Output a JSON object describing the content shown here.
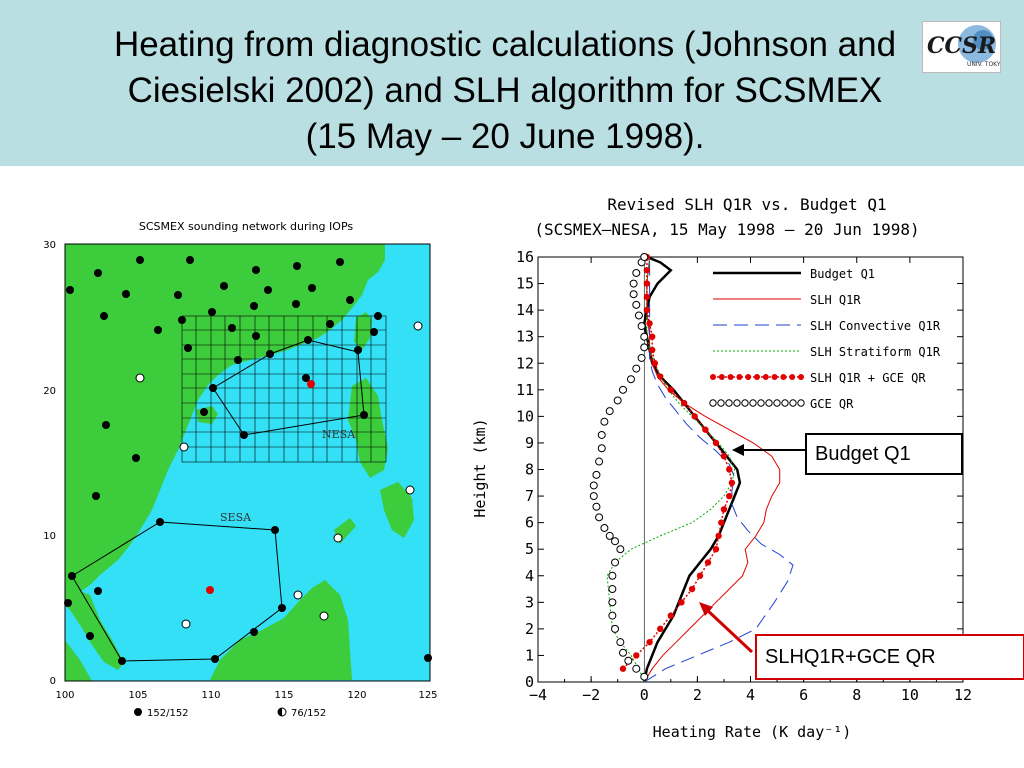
{
  "slide": {
    "title_lines": [
      "Heating from diagnostic calculations (Johnson and",
      "Ciesielski 2002) and SLH algorithm for SCSMEX",
      "(15 May – 20 June 1998)."
    ],
    "logo_text": "CCSR",
    "logo_subtext": "UNIV. TOKYO"
  },
  "map": {
    "title": "SCSMEX sounding network during IOPs",
    "x_ticks": [
      "100",
      "105",
      "110",
      "115",
      "120",
      "125"
    ],
    "y_ticks": [
      "0",
      "10",
      "20",
      "30"
    ],
    "region_labels": [
      "NESA",
      "SESA"
    ],
    "legend": [
      {
        "symbol": "filled-circle",
        "label": "152/152"
      },
      {
        "symbol": "half-circle",
        "label": "76/152"
      }
    ],
    "colors": {
      "ocean": "#33e0f5",
      "land": "#3ccc3c",
      "station": "#000000",
      "highlight": "#e00000"
    }
  },
  "chart_data": {
    "type": "line",
    "title": "Revised SLH Q1R vs. Budget Q1",
    "subtitle": "(SCSMEX–NESA, 15 May 1998 – 20 Jun 1998)",
    "xlabel": "Heating Rate (K day⁻¹)",
    "ylabel": "Height (km)",
    "xlim": [
      -4,
      12
    ],
    "ylim": [
      0,
      16
    ],
    "x_ticks": [
      "−4",
      "−2",
      "0",
      "2",
      "4",
      "6",
      "8",
      "10",
      "12"
    ],
    "y_ticks": [
      "0",
      "1",
      "2",
      "3",
      "4",
      "5",
      "6",
      "7",
      "8",
      "9",
      "10",
      "11",
      "12",
      "13",
      "14",
      "15",
      "16"
    ],
    "legend_position": "top-right",
    "series": [
      {
        "name": "Budget Q1",
        "color": "#000000",
        "style": "solid-thick",
        "points": [
          [
            0,
            0
          ],
          [
            0.1,
            0.5
          ],
          [
            0.3,
            1
          ],
          [
            0.5,
            1.5
          ],
          [
            0.8,
            2
          ],
          [
            1.1,
            2.5
          ],
          [
            1.3,
            3
          ],
          [
            1.5,
            3.5
          ],
          [
            1.7,
            4
          ],
          [
            2.1,
            4.5
          ],
          [
            2.5,
            5
          ],
          [
            2.8,
            5.5
          ],
          [
            3.0,
            6
          ],
          [
            3.2,
            6.5
          ],
          [
            3.4,
            7
          ],
          [
            3.6,
            7.5
          ],
          [
            3.5,
            8
          ],
          [
            3.1,
            8.5
          ],
          [
            2.7,
            9
          ],
          [
            2.3,
            9.5
          ],
          [
            1.9,
            10
          ],
          [
            1.5,
            10.5
          ],
          [
            1.1,
            11
          ],
          [
            0.6,
            11.5
          ],
          [
            0.3,
            12
          ],
          [
            0.2,
            12.5
          ],
          [
            0.1,
            13
          ],
          [
            0.0,
            13.5
          ],
          [
            0.1,
            14
          ],
          [
            0.2,
            14.5
          ],
          [
            0.5,
            15
          ],
          [
            1.0,
            15.5
          ],
          [
            0.6,
            15.8
          ],
          [
            0.1,
            16
          ]
        ]
      },
      {
        "name": "SLH Q1R",
        "color": "#e00000",
        "style": "solid-thin",
        "points": [
          [
            0,
            0
          ],
          [
            0.3,
            0.5
          ],
          [
            0.7,
            1
          ],
          [
            1.2,
            1.5
          ],
          [
            1.7,
            2
          ],
          [
            2.2,
            2.5
          ],
          [
            2.7,
            3
          ],
          [
            3.2,
            3.5
          ],
          [
            3.7,
            4
          ],
          [
            3.9,
            4.5
          ],
          [
            3.8,
            5
          ],
          [
            4.2,
            5.5
          ],
          [
            4.5,
            6
          ],
          [
            4.6,
            6.5
          ],
          [
            4.8,
            7
          ],
          [
            5.1,
            7.5
          ],
          [
            5.1,
            8
          ],
          [
            4.8,
            8.5
          ],
          [
            4.1,
            9
          ],
          [
            3.2,
            9.5
          ],
          [
            2.3,
            10
          ],
          [
            1.5,
            10.5
          ],
          [
            0.9,
            11
          ],
          [
            0.5,
            11.5
          ],
          [
            0.3,
            12
          ],
          [
            0.2,
            12.5
          ],
          [
            0.2,
            13
          ],
          [
            0.1,
            14
          ],
          [
            0.1,
            15
          ],
          [
            0.2,
            16
          ]
        ]
      },
      {
        "name": "SLH Convective Q1R",
        "color": "#2040d0",
        "style": "long-dash",
        "points": [
          [
            0,
            0
          ],
          [
            0.8,
            0.5
          ],
          [
            2.0,
            1
          ],
          [
            3.2,
            1.5
          ],
          [
            4.2,
            2
          ],
          [
            4.9,
            3
          ],
          [
            5.4,
            3.8
          ],
          [
            5.6,
            4.4
          ],
          [
            5.1,
            4.8
          ],
          [
            4.4,
            5.2
          ],
          [
            3.9,
            5.7
          ],
          [
            3.5,
            6.2
          ],
          [
            3.3,
            6.7
          ],
          [
            3.3,
            7.2
          ],
          [
            3.4,
            7.7
          ],
          [
            3.2,
            8.2
          ],
          [
            2.7,
            8.7
          ],
          [
            2.1,
            9.2
          ],
          [
            1.6,
            9.7
          ],
          [
            1.2,
            10.2
          ],
          [
            0.8,
            10.7
          ],
          [
            0.5,
            11.2
          ],
          [
            0.3,
            11.7
          ],
          [
            0.2,
            12.2
          ],
          [
            0.2,
            13
          ],
          [
            0.2,
            14
          ],
          [
            0.2,
            15
          ],
          [
            0.2,
            16
          ]
        ]
      },
      {
        "name": "SLH Stratiform Q1R",
        "color": "#00b000",
        "style": "dotted",
        "points": [
          [
            0,
            0
          ],
          [
            -0.2,
            0.5
          ],
          [
            -0.5,
            1
          ],
          [
            -0.9,
            1.5
          ],
          [
            -1.2,
            2
          ],
          [
            -1.3,
            3
          ],
          [
            -1.4,
            4
          ],
          [
            -1.1,
            4.5
          ],
          [
            -0.5,
            5
          ],
          [
            0.6,
            5.5
          ],
          [
            1.8,
            6
          ],
          [
            2.5,
            6.5
          ],
          [
            3.0,
            7
          ],
          [
            3.3,
            7.5
          ],
          [
            3.4,
            8
          ],
          [
            3.2,
            8.5
          ],
          [
            2.8,
            9
          ],
          [
            2.3,
            9.5
          ],
          [
            1.8,
            10
          ],
          [
            1.3,
            10.5
          ],
          [
            0.9,
            11
          ],
          [
            0.6,
            11.5
          ],
          [
            0.4,
            12
          ],
          [
            0.2,
            12.5
          ],
          [
            0.1,
            13
          ],
          [
            0.1,
            14
          ],
          [
            0.1,
            15
          ],
          [
            0.2,
            16
          ]
        ]
      },
      {
        "name": "SLH Q1R + GCE QR",
        "color": "#e00000",
        "style": "dotted-markers",
        "points": [
          [
            -0.8,
            0.5
          ],
          [
            -0.3,
            1
          ],
          [
            0.2,
            1.5
          ],
          [
            0.6,
            2
          ],
          [
            1.0,
            2.5
          ],
          [
            1.4,
            3
          ],
          [
            1.8,
            3.5
          ],
          [
            2.1,
            4
          ],
          [
            2.4,
            4.5
          ],
          [
            2.7,
            5
          ],
          [
            2.8,
            5.5
          ],
          [
            2.9,
            6
          ],
          [
            3.0,
            6.5
          ],
          [
            3.2,
            7
          ],
          [
            3.3,
            7.5
          ],
          [
            3.2,
            8
          ],
          [
            3.0,
            8.5
          ],
          [
            2.7,
            9
          ],
          [
            2.3,
            9.5
          ],
          [
            1.9,
            10
          ],
          [
            1.5,
            10.5
          ],
          [
            1.0,
            11
          ],
          [
            0.6,
            11.5
          ],
          [
            0.4,
            12
          ],
          [
            0.3,
            12.5
          ],
          [
            0.3,
            13
          ],
          [
            0.2,
            13.5
          ],
          [
            0.1,
            14
          ],
          [
            0.1,
            14.5
          ],
          [
            0.1,
            15
          ],
          [
            0.1,
            15.5
          ],
          [
            0.1,
            16
          ]
        ]
      },
      {
        "name": "GCE QR",
        "color": "#000000",
        "style": "open-circles",
        "points": [
          [
            0,
            0.2
          ],
          [
            -0.3,
            0.5
          ],
          [
            -0.6,
            0.8
          ],
          [
            -0.8,
            1.1
          ],
          [
            -0.9,
            1.5
          ],
          [
            -1.1,
            2
          ],
          [
            -1.2,
            2.5
          ],
          [
            -1.2,
            3
          ],
          [
            -1.2,
            3.5
          ],
          [
            -1.2,
            4
          ],
          [
            -1.1,
            4.5
          ],
          [
            -0.9,
            5
          ],
          [
            -1.1,
            5.3
          ],
          [
            -1.3,
            5.5
          ],
          [
            -1.5,
            5.8
          ],
          [
            -1.7,
            6.2
          ],
          [
            -1.8,
            6.6
          ],
          [
            -1.9,
            7
          ],
          [
            -1.9,
            7.4
          ],
          [
            -1.8,
            7.8
          ],
          [
            -1.7,
            8.3
          ],
          [
            -1.6,
            8.8
          ],
          [
            -1.6,
            9.3
          ],
          [
            -1.5,
            9.8
          ],
          [
            -1.3,
            10.2
          ],
          [
            -1.0,
            10.6
          ],
          [
            -0.8,
            11
          ],
          [
            -0.5,
            11.4
          ],
          [
            -0.3,
            11.8
          ],
          [
            -0.1,
            12.2
          ],
          [
            0.0,
            12.6
          ],
          [
            0.0,
            13
          ],
          [
            -0.1,
            13.4
          ],
          [
            -0.2,
            13.8
          ],
          [
            -0.3,
            14.2
          ],
          [
            -0.4,
            14.6
          ],
          [
            -0.4,
            15
          ],
          [
            -0.3,
            15.4
          ],
          [
            -0.1,
            15.8
          ],
          [
            0,
            16
          ]
        ]
      }
    ]
  },
  "callouts": {
    "budget": "Budget Q1",
    "slh": "SLHQ1R+GCE QR"
  }
}
